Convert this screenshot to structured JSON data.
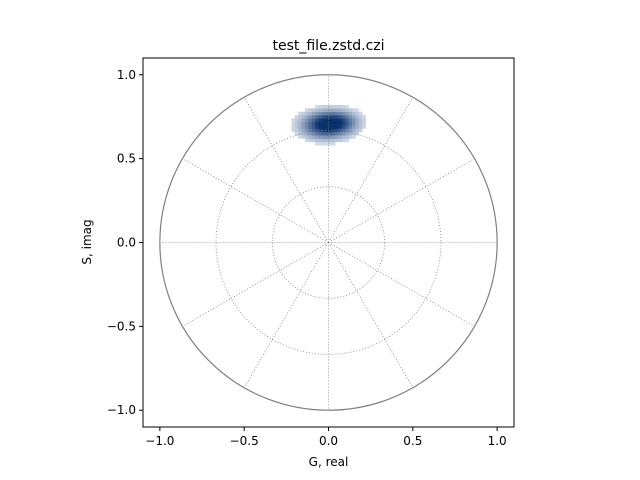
{
  "chart_data": {
    "type": "heatmap",
    "subtype": "phasor-plot-2d-histogram",
    "title": "test_file.zstd.czi",
    "xlabel": "G, real",
    "ylabel": "S, imag",
    "xlim": [
      -1.1,
      1.1
    ],
    "ylim": [
      -1.1,
      1.1
    ],
    "xticks": [
      -1.0,
      -0.5,
      0.0,
      0.5,
      1.0
    ],
    "yticks": [
      -1.0,
      -0.5,
      0.0,
      0.5,
      1.0
    ],
    "xtick_labels": [
      "−1.0",
      "−0.5",
      "0.0",
      "0.5",
      "1.0"
    ],
    "ytick_labels": [
      "−1.0",
      "−0.5",
      "0.0",
      "0.5",
      "1.0"
    ],
    "grid": {
      "circle_radii": [
        0.333,
        0.667
      ],
      "spoke_angles_deg": [
        0,
        30,
        60,
        90,
        120,
        150,
        180,
        210,
        240,
        270,
        300,
        330
      ],
      "outer_circle_radius": 1.0,
      "style": "dotted"
    },
    "histogram": {
      "colormap": "Blues",
      "bin_size": 0.02,
      "centers": [
        {
          "g": -0.02,
          "s": 0.7,
          "sigma_g": 0.08,
          "sigma_s": 0.045,
          "weight": 1.0
        },
        {
          "g": 0.06,
          "s": 0.72,
          "sigma_g": 0.07,
          "sigma_s": 0.04,
          "weight": 0.55
        }
      ],
      "peak": {
        "g": -0.02,
        "s": 0.7
      }
    },
    "colors": {
      "outer_circle": "#808080",
      "grid": "#808080",
      "axes": "#000000",
      "cmap_low": "#f7fbff",
      "cmap_high": "#08306b"
    }
  }
}
